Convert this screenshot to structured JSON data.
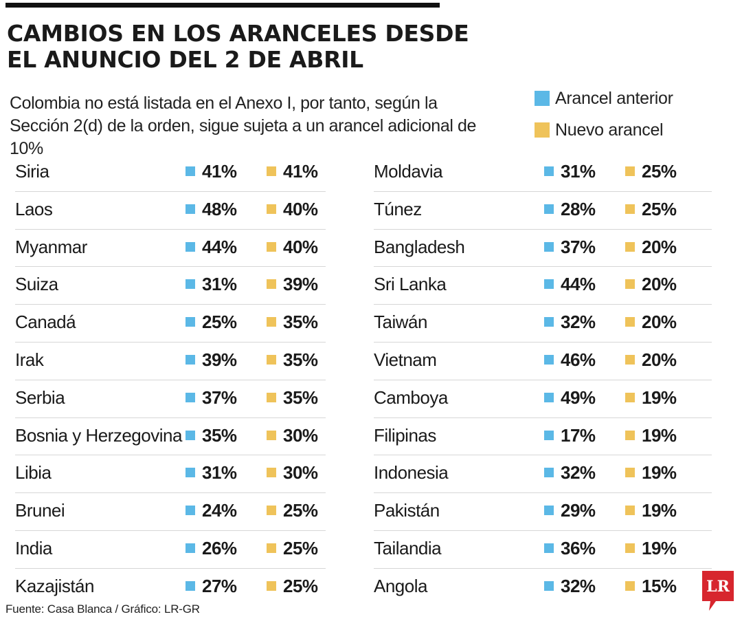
{
  "title": "CAMBIOS EN LOS ARANCELES DESDE EL ANUNCIO DEL 2 DE ABRIL",
  "subtitle": "Colombia no está listada en el Anexo I, por tanto, según la Sección 2(d) de la orden, sigue sujeta a un arancel adicional de 10%",
  "legend": {
    "previous_label": "Arancel anterior",
    "new_label": "Nuevo arancel"
  },
  "colors": {
    "previous": "#5BB8E6",
    "new": "#EFC35A",
    "logo": "#D7262E"
  },
  "left_rows": [
    {
      "country": "Siria",
      "previous": "41%",
      "new": "41%"
    },
    {
      "country": "Laos",
      "previous": "48%",
      "new": "40%"
    },
    {
      "country": "Myanmar",
      "previous": "44%",
      "new": "40%"
    },
    {
      "country": "Suiza",
      "previous": "31%",
      "new": "39%"
    },
    {
      "country": "Canadá",
      "previous": "25%",
      "new": "35%"
    },
    {
      "country": "Irak",
      "previous": "39%",
      "new": "35%"
    },
    {
      "country": "Serbia",
      "previous": "37%",
      "new": "35%"
    },
    {
      "country": "Bosnia y Herzegovina",
      "previous": "35%",
      "new": "30%"
    },
    {
      "country": "Libia",
      "previous": "31%",
      "new": "30%"
    },
    {
      "country": "Brunei",
      "previous": "24%",
      "new": "25%"
    },
    {
      "country": "India",
      "previous": "26%",
      "new": "25%"
    },
    {
      "country": "Kazajistán",
      "previous": "27%",
      "new": "25%"
    }
  ],
  "right_rows": [
    {
      "country": "Moldavia",
      "previous": "31%",
      "new": "25%"
    },
    {
      "country": "Túnez",
      "previous": "28%",
      "new": "25%"
    },
    {
      "country": "Bangladesh",
      "previous": "37%",
      "new": "20%"
    },
    {
      "country": "Sri Lanka",
      "previous": "44%",
      "new": "20%"
    },
    {
      "country": "Taiwán",
      "previous": "32%",
      "new": "20%"
    },
    {
      "country": "Vietnam",
      "previous": "46%",
      "new": "20%"
    },
    {
      "country": "Camboya",
      "previous": "49%",
      "new": "19%"
    },
    {
      "country": "Filipinas",
      "previous": "17%",
      "new": "19%"
    },
    {
      "country": "Indonesia",
      "previous": "32%",
      "new": "19%"
    },
    {
      "country": "Pakistán",
      "previous": "29%",
      "new": "19%"
    },
    {
      "country": "Tailandia",
      "previous": "36%",
      "new": "19%"
    },
    {
      "country": "Angola",
      "previous": "32%",
      "new": "15%"
    }
  ],
  "source": "Fuente: Casa Blanca / Gráfico: LR-GR",
  "logo_text": "LR"
}
